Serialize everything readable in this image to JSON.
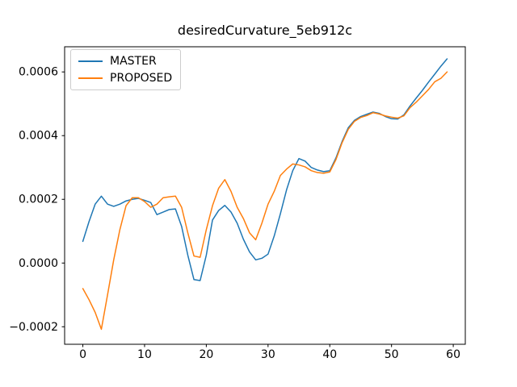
{
  "chart_data": {
    "type": "line",
    "title": "desiredCurvature_5eb912c",
    "grid": false,
    "background": "#ffffff",
    "xlim": [
      -2.95,
      61.95
    ],
    "ylim": [
      -0.000255,
      0.000679
    ],
    "xticks": [
      0,
      10,
      20,
      30,
      40,
      50,
      60
    ],
    "xtick_labels": [
      "0",
      "10",
      "20",
      "30",
      "40",
      "50",
      "60"
    ],
    "yticks": [
      -0.0002,
      0.0,
      0.0002,
      0.0004,
      0.0006
    ],
    "ytick_labels": [
      "−0.0002",
      "0.0000",
      "0.0002",
      "0.0004",
      "0.0006"
    ],
    "legend": {
      "position": "upper-left",
      "entries": [
        "MASTER",
        "PROPOSED"
      ]
    },
    "x": [
      0,
      1,
      2,
      3,
      4,
      5,
      6,
      7,
      8,
      9,
      10,
      11,
      12,
      13,
      14,
      15,
      16,
      17,
      18,
      19,
      20,
      21,
      22,
      23,
      24,
      25,
      26,
      27,
      28,
      29,
      30,
      31,
      32,
      33,
      34,
      35,
      36,
      37,
      38,
      39,
      40,
      41,
      42,
      43,
      44,
      45,
      46,
      47,
      48,
      49,
      50,
      51,
      52,
      53,
      54,
      55,
      56,
      57,
      58,
      59
    ],
    "series": [
      {
        "name": "MASTER",
        "color": "#1f77b4",
        "values": [
          6.8e-05,
          0.00013,
          0.000185,
          0.00021,
          0.000185,
          0.000178,
          0.000185,
          0.000195,
          0.0002,
          0.000203,
          0.000197,
          0.00019,
          0.000152,
          0.00016,
          0.000168,
          0.00017,
          0.000115,
          2.5e-05,
          -5.2e-05,
          -5.5e-05,
          2.5e-05,
          0.000135,
          0.000165,
          0.000181,
          0.00016,
          0.000125,
          7.5e-05,
          3.5e-05,
          1e-05,
          1.5e-05,
          2.8e-05,
          8.5e-05,
          0.000155,
          0.00023,
          0.00029,
          0.000328,
          0.00032,
          0.0003,
          0.000292,
          0.000287,
          0.00029,
          0.00033,
          0.000382,
          0.000425,
          0.000448,
          0.00046,
          0.000467,
          0.000474,
          0.00047,
          0.00046,
          0.000453,
          0.000452,
          0.000465,
          0.000493,
          0.000518,
          0.000542,
          0.000568,
          0.000593,
          0.000618,
          0.000641
        ]
      },
      {
        "name": "PROPOSED",
        "color": "#ff7f0e",
        "values": [
          -8e-05,
          -0.000115,
          -0.000155,
          -0.000208,
          -0.0001,
          1e-05,
          0.000105,
          0.00018,
          0.000205,
          0.000205,
          0.000193,
          0.000175,
          0.000185,
          0.000205,
          0.000208,
          0.00021,
          0.000175,
          9.5e-05,
          2.2e-05,
          1.8e-05,
          0.000105,
          0.00018,
          0.000235,
          0.000262,
          0.000225,
          0.000175,
          0.00014,
          9.5e-05,
          7.3e-05,
          0.000125,
          0.000185,
          0.000225,
          0.000275,
          0.000295,
          0.000311,
          0.000308,
          0.000302,
          0.00029,
          0.000284,
          0.000282,
          0.000286,
          0.000325,
          0.000378,
          0.00042,
          0.000445,
          0.000457,
          0.000463,
          0.000472,
          0.000468,
          0.000462,
          0.000458,
          0.000455,
          0.000462,
          0.000488,
          0.000505,
          0.000525,
          0.000545,
          0.000569,
          0.00058,
          0.0006
        ]
      }
    ]
  }
}
